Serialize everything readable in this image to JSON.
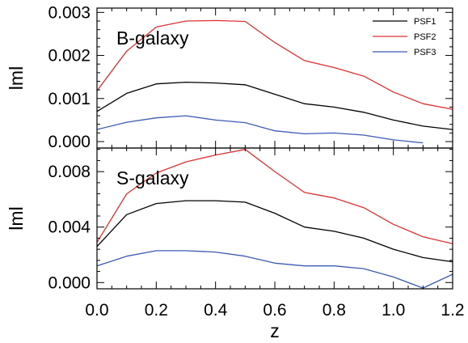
{
  "chart_data": [
    {
      "type": "line",
      "panel_label": "B-galaxy",
      "ylabel": "lml",
      "xlabel": "",
      "xlim": [
        0.0,
        1.2
      ],
      "ylim": [
        -0.00015,
        0.0031
      ],
      "yticks": [
        0.0,
        0.001,
        0.002,
        0.003
      ],
      "ytick_labels": [
        "0.000",
        "0.001",
        "0.002",
        "0.003"
      ],
      "xticks": [
        0.0,
        0.2,
        0.4,
        0.6,
        0.8,
        1.0,
        1.2
      ],
      "xtick_labels": [],
      "legend": "top-right",
      "grid": false,
      "x": [
        0.0,
        0.1,
        0.2,
        0.3,
        0.4,
        0.5,
        0.6,
        0.7,
        0.8,
        0.9,
        1.0,
        1.1,
        1.2
      ],
      "series": [
        {
          "name": "PSF1",
          "color": "#000000",
          "values": [
            0.0007,
            0.00112,
            0.00134,
            0.00138,
            0.00136,
            0.00132,
            0.0011,
            0.00088,
            0.0008,
            0.00068,
            0.0005,
            0.00036,
            0.00028
          ]
        },
        {
          "name": "PSF2",
          "color": "#e03131",
          "values": [
            0.00118,
            0.0021,
            0.00266,
            0.0028,
            0.00281,
            0.00279,
            0.0023,
            0.00188,
            0.00172,
            0.00152,
            0.00115,
            0.00088,
            0.00075
          ]
        },
        {
          "name": "PSF3",
          "color": "#3b5bb5",
          "values": [
            0.00028,
            0.00045,
            0.00055,
            0.0006,
            0.0005,
            0.00044,
            0.00025,
            0.00018,
            0.0002,
            0.00015,
            4e-05,
            -3e-05,
            null
          ]
        }
      ]
    },
    {
      "type": "line",
      "panel_label": "S-galaxy",
      "ylabel": "lml",
      "xlabel": "z",
      "xlim": [
        0.0,
        1.2
      ],
      "ylim": [
        -0.00045,
        0.0097
      ],
      "yticks": [
        0.0,
        0.004,
        0.008
      ],
      "ytick_labels": [
        "0.000",
        "0.004",
        "0.008"
      ],
      "xticks": [
        0.0,
        0.2,
        0.4,
        0.6,
        0.8,
        1.0,
        1.2
      ],
      "xtick_labels": [
        "0.0",
        "0.2",
        "0.4",
        "0.6",
        "0.8",
        "1.0",
        "1.2"
      ],
      "grid": false,
      "x": [
        0.0,
        0.1,
        0.2,
        0.3,
        0.4,
        0.5,
        0.6,
        0.7,
        0.8,
        0.9,
        1.0,
        1.1,
        1.2
      ],
      "series": [
        {
          "name": "PSF1",
          "color": "#000000",
          "values": [
            0.0026,
            0.0049,
            0.0057,
            0.0059,
            0.0059,
            0.0058,
            0.005,
            0.004,
            0.0037,
            0.0032,
            0.0024,
            0.0018,
            0.0015
          ]
        },
        {
          "name": "PSF2",
          "color": "#e03131",
          "values": [
            0.0029,
            0.0064,
            0.0079,
            0.0087,
            0.0092,
            0.0096,
            0.008,
            0.0065,
            0.0061,
            0.0054,
            0.0042,
            0.0033,
            0.0028
          ]
        },
        {
          "name": "PSF3",
          "color": "#3b5bb5",
          "values": [
            0.0012,
            0.0019,
            0.0023,
            0.0023,
            0.0022,
            0.0019,
            0.0014,
            0.0012,
            0.0012,
            0.001,
            0.0004,
            -0.0004,
            0.0006
          ]
        }
      ]
    }
  ]
}
